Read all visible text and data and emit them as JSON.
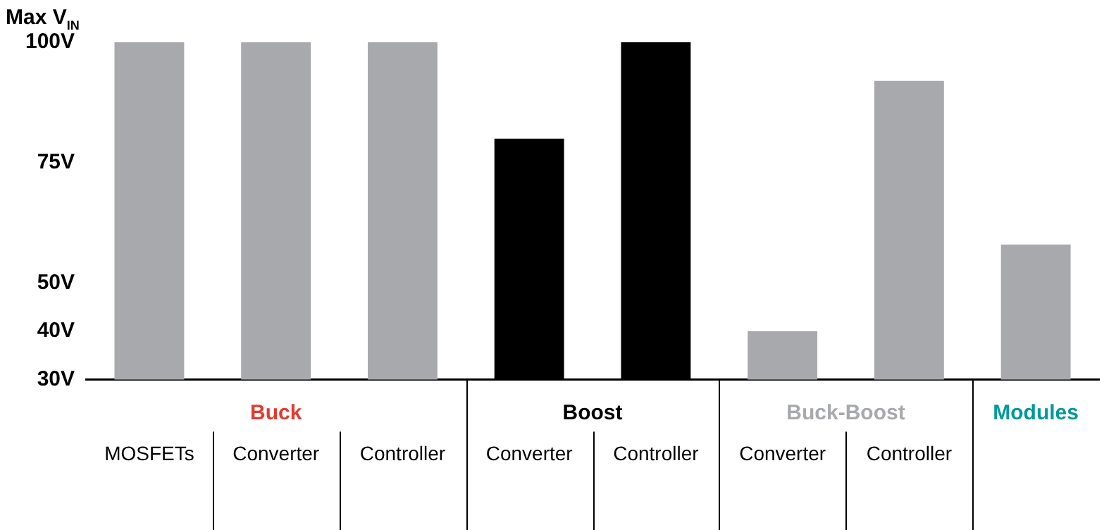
{
  "chart_data": {
    "type": "bar",
    "ylabel": "Max V$_{IN}$",
    "categories": [
      "MOSFETs",
      "Converter",
      "Controller",
      "Converter",
      "Controller",
      "Converter",
      "Controller",
      null
    ],
    "values": [
      100,
      100,
      100,
      80,
      100,
      40,
      92,
      58
    ],
    "colors": [
      "#a7a9ac",
      "#a7a9ac",
      "#a7a9ac",
      "#000000",
      "#000000",
      "#a7a9ac",
      "#a7a9ac",
      "#a7a9ac"
    ],
    "ylim": [
      30,
      100
    ],
    "yticks": [
      {
        "value": 30,
        "label": "30V"
      },
      {
        "value": 40,
        "label": "40V"
      },
      {
        "value": 50,
        "label": "50V"
      },
      {
        "value": 75,
        "label": "75V"
      },
      {
        "value": 100,
        "label": "100V"
      }
    ],
    "annotations": [
      "Buck",
      "Boost",
      "Buck-Boost",
      "Modules"
    ],
    "grid": false,
    "legend": false
  }
}
